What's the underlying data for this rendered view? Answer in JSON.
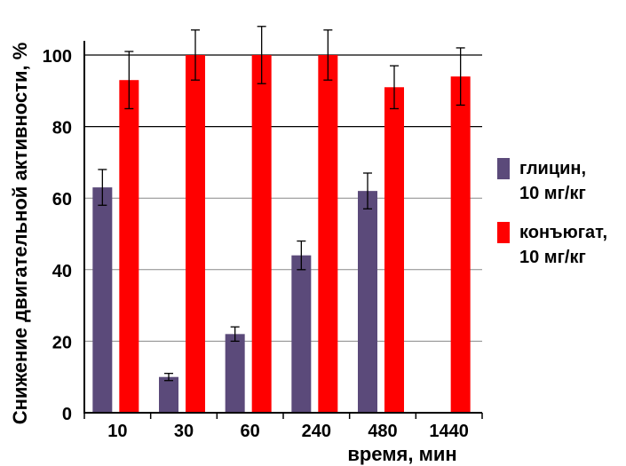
{
  "chart_data": {
    "type": "bar",
    "categories": [
      "10",
      "30",
      "60",
      "240",
      "480",
      "1440"
    ],
    "series": [
      {
        "name": "глицин, 10 мг/кг",
        "name_lines": [
          "глицин,",
          "10 мг/кг"
        ],
        "color": "#5b4a7a",
        "values": [
          63,
          10,
          22,
          44,
          62,
          null
        ],
        "errors": [
          5,
          1,
          2,
          4,
          5,
          null
        ]
      },
      {
        "name": "конъюгат, 10 мг/кг",
        "name_lines": [
          "конъюгат,",
          "10 мг/кг"
        ],
        "color": "#ff0000",
        "values": [
          93,
          100,
          100,
          100,
          91,
          94
        ],
        "errors": [
          8,
          7,
          8,
          7,
          6,
          8
        ]
      }
    ],
    "ylabel": "Снижение двигательной активности, %",
    "xlabel": "время, мин",
    "ylim": [
      0,
      100
    ],
    "yticks": [
      0,
      20,
      40,
      60,
      80,
      100
    ],
    "grid": true,
    "legend_position": "right"
  }
}
